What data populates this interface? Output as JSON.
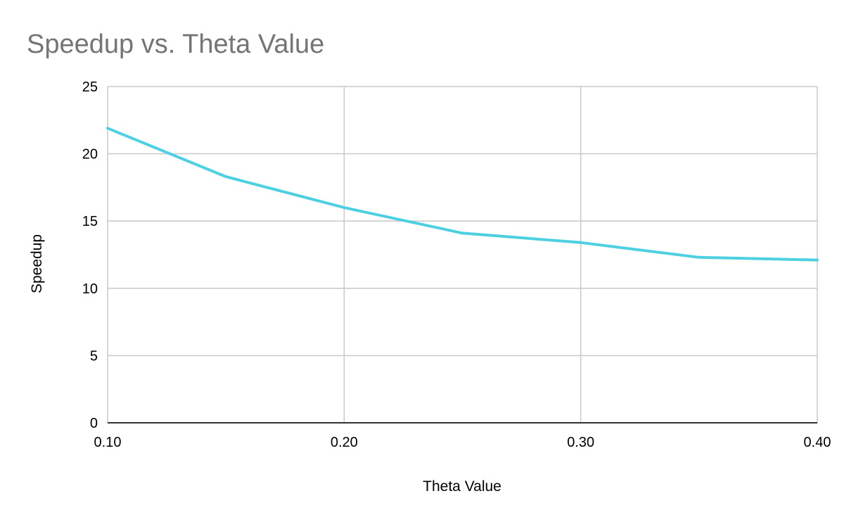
{
  "chart_data": {
    "type": "line",
    "title": "Speedup vs. Theta Value",
    "xlabel": "Theta Value",
    "ylabel": "Speedup",
    "xlim": [
      0.1,
      0.4
    ],
    "ylim": [
      0,
      25
    ],
    "x_ticks": [
      "0.10",
      "0.20",
      "0.30",
      "0.40"
    ],
    "y_ticks": [
      "0",
      "5",
      "10",
      "15",
      "20",
      "25"
    ],
    "grid": true,
    "legend": "none",
    "series": [
      {
        "color": "#4dd0e1",
        "x": [
          0.1,
          0.15,
          0.2,
          0.25,
          0.3,
          0.35,
          0.4
        ],
        "y": [
          21.9,
          18.3,
          16.0,
          14.1,
          13.4,
          12.3,
          12.1
        ]
      }
    ]
  }
}
